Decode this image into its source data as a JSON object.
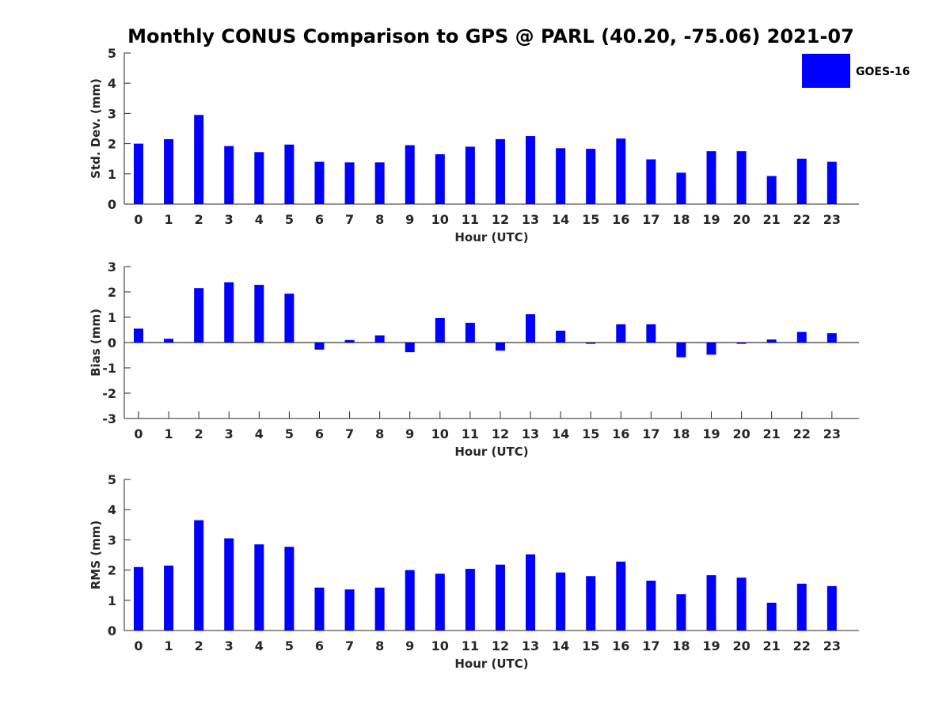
{
  "title": "Monthly CONUS Comparison to GPS @ PARL (40.20, -75.06) 2021-07",
  "legend": {
    "label": "GOES-16",
    "color": "#0000ff",
    "placement": "top-right"
  },
  "colors": {
    "bar": "#0000ff",
    "axis": "#262626"
  },
  "chart_data": [
    {
      "type": "bar",
      "categories": [
        "0",
        "1",
        "2",
        "3",
        "4",
        "5",
        "6",
        "7",
        "8",
        "9",
        "10",
        "11",
        "12",
        "13",
        "14",
        "15",
        "16",
        "17",
        "18",
        "19",
        "20",
        "21",
        "22",
        "23"
      ],
      "series": [
        {
          "name": "GOES-16",
          "values": [
            2.0,
            2.15,
            2.95,
            1.92,
            1.72,
            1.97,
            1.4,
            1.38,
            1.38,
            1.95,
            1.65,
            1.9,
            2.15,
            2.25,
            1.85,
            1.83,
            2.17,
            1.48,
            1.04,
            1.75,
            1.75,
            0.93,
            1.5,
            1.4
          ]
        }
      ],
      "xlabel": "Hour (UTC)",
      "ylabel": "Std. Dev. (mm)",
      "ylim": [
        0,
        5
      ],
      "yticks": [
        "0",
        "1",
        "2",
        "3",
        "4",
        "5"
      ],
      "grid": false
    },
    {
      "type": "bar",
      "categories": [
        "0",
        "1",
        "2",
        "3",
        "4",
        "5",
        "6",
        "7",
        "8",
        "9",
        "10",
        "11",
        "12",
        "13",
        "14",
        "15",
        "16",
        "17",
        "18",
        "19",
        "20",
        "21",
        "22",
        "23"
      ],
      "series": [
        {
          "name": "GOES-16",
          "values": [
            0.55,
            0.15,
            2.15,
            2.38,
            2.28,
            1.93,
            -0.28,
            0.1,
            0.28,
            -0.38,
            0.97,
            0.78,
            -0.32,
            1.12,
            0.47,
            -0.05,
            0.72,
            0.72,
            -0.58,
            -0.48,
            -0.05,
            0.12,
            0.42,
            0.37
          ]
        }
      ],
      "xlabel": "Hour (UTC)",
      "ylabel": "Bias (mm)",
      "ylim": [
        -3,
        3
      ],
      "yticks": [
        "-3",
        "-2",
        "-1",
        "0",
        "1",
        "2",
        "3"
      ],
      "grid": false
    },
    {
      "type": "bar",
      "categories": [
        "0",
        "1",
        "2",
        "3",
        "4",
        "5",
        "6",
        "7",
        "8",
        "9",
        "10",
        "11",
        "12",
        "13",
        "14",
        "15",
        "16",
        "17",
        "18",
        "19",
        "20",
        "21",
        "22",
        "23"
      ],
      "series": [
        {
          "name": "GOES-16",
          "values": [
            2.1,
            2.15,
            3.65,
            3.05,
            2.85,
            2.77,
            1.42,
            1.36,
            1.42,
            2.0,
            1.88,
            2.04,
            2.18,
            2.52,
            1.92,
            1.8,
            2.28,
            1.65,
            1.2,
            1.83,
            1.75,
            0.92,
            1.55,
            1.47
          ]
        }
      ],
      "xlabel": "Hour (UTC)",
      "ylabel": "RMS (mm)",
      "ylim": [
        0,
        5
      ],
      "yticks": [
        "0",
        "1",
        "2",
        "3",
        "4",
        "5"
      ],
      "grid": false
    }
  ]
}
